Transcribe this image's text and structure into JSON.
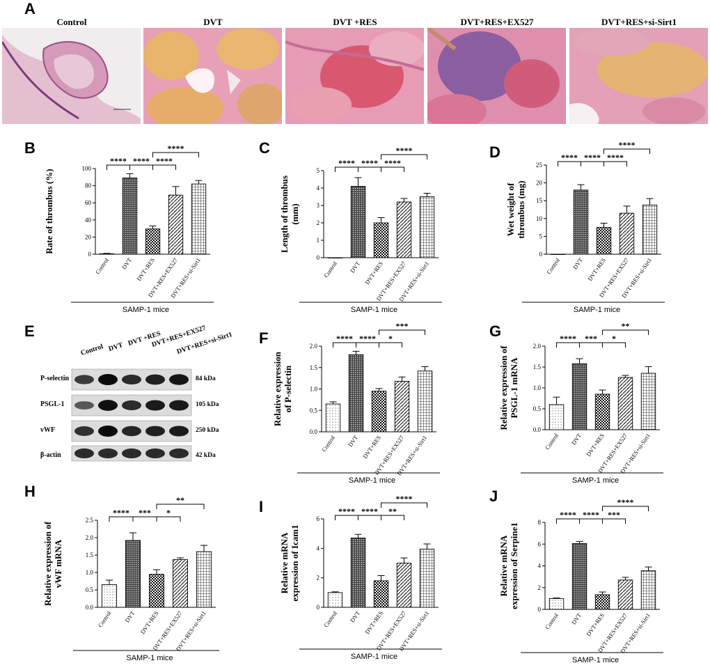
{
  "panel_letters": [
    "A",
    "B",
    "C",
    "D",
    "E",
    "F",
    "G",
    "H",
    "I",
    "J"
  ],
  "histology": {
    "panels": [
      {
        "title": "Control"
      },
      {
        "title": "DVT"
      },
      {
        "title": "DVT +RES"
      },
      {
        "title": "DVT+RES+EX527"
      },
      {
        "title": "DVT+RES+si-Sirt1"
      }
    ]
  },
  "western_blot": {
    "lanes": [
      "Control",
      "DVT",
      "DVT +RES",
      "DVT+RES+EX527",
      "DVT+RES+si-Sirt1"
    ],
    "rows": [
      {
        "label": "P-selectin",
        "kda": "84 kDa",
        "intensity": [
          0.55,
          1.0,
          0.7,
          0.8,
          0.9
        ]
      },
      {
        "label": "PSGL-1",
        "kda": "105 kDa",
        "intensity": [
          0.3,
          0.95,
          0.7,
          0.85,
          0.85
        ]
      },
      {
        "label": "vWF",
        "kda": "250 kDa",
        "intensity": [
          0.65,
          1.0,
          0.75,
          0.8,
          0.85
        ]
      },
      {
        "label": "β-actin",
        "kda": "42 kDa",
        "intensity": [
          0.7,
          0.7,
          0.7,
          0.7,
          0.7
        ]
      }
    ]
  },
  "chart_data": [
    {
      "id": "B",
      "type": "bar",
      "categories": [
        "Control",
        "DVT",
        "DVT+RES",
        "DVT+RES+EX527",
        "DVT+RES+si-Sirt1"
      ],
      "values": [
        0.5,
        89,
        29.5,
        69,
        82
      ],
      "errors": [
        0.5,
        5,
        3.5,
        10,
        4
      ],
      "ylabel": "Rate of thrombus (%)",
      "ylim": [
        0,
        100
      ],
      "yticks": [
        "0",
        "20",
        "40",
        "60",
        "80",
        "100"
      ],
      "ytick_values": [
        0,
        20,
        40,
        60,
        80,
        100
      ],
      "group_label": "SAMP-1  mice",
      "significance": [
        {
          "from": 0,
          "to": 1,
          "label": "****",
          "level": 0
        },
        {
          "from": 1,
          "to": 2,
          "label": "****",
          "level": 0
        },
        {
          "from": 2,
          "to": 3,
          "label": "****",
          "level": 0
        },
        {
          "from": 2,
          "to": 4,
          "label": "****",
          "level": 1
        }
      ]
    },
    {
      "id": "C",
      "type": "bar",
      "categories": [
        "Control",
        "DVT",
        "DVT+RES",
        "DVT+RES+EX527",
        "DVT+RES+si-Sirt1"
      ],
      "values": [
        0,
        4.1,
        2.0,
        3.2,
        3.5
      ],
      "errors": [
        0,
        0.5,
        0.3,
        0.2,
        0.2
      ],
      "ylabel": "Length of thrombus\n(mm)",
      "ylim": [
        0,
        5
      ],
      "yticks": [
        "0",
        "1",
        "2",
        "3",
        "4",
        "5"
      ],
      "ytick_values": [
        0,
        1,
        2,
        3,
        4,
        5
      ],
      "group_label": "SAMP-1  mice",
      "significance": [
        {
          "from": 0,
          "to": 1,
          "label": "****",
          "level": 0
        },
        {
          "from": 1,
          "to": 2,
          "label": "****",
          "level": 0
        },
        {
          "from": 2,
          "to": 3,
          "label": "****",
          "level": 0
        },
        {
          "from": 2,
          "to": 4,
          "label": "****",
          "level": 1
        }
      ]
    },
    {
      "id": "D",
      "type": "bar",
      "categories": [
        "Control",
        "DVT",
        "DVT+RES",
        "DVT+RES+EX527",
        "DVT+RES+si-Sirt1"
      ],
      "values": [
        0,
        18,
        7.5,
        11.5,
        13.8
      ],
      "errors": [
        0,
        1.5,
        1.2,
        2,
        1.8
      ],
      "ylabel": "Wet weight of\nthrombus (mg)",
      "ylim": [
        0,
        25
      ],
      "yticks": [
        "0",
        "5",
        "10",
        "15",
        "20",
        "25"
      ],
      "ytick_values": [
        0,
        5,
        10,
        15,
        20,
        25
      ],
      "group_label": "SAMP-1  mice",
      "significance": [
        {
          "from": 0,
          "to": 1,
          "label": "****",
          "level": 0
        },
        {
          "from": 1,
          "to": 2,
          "label": "****",
          "level": 0
        },
        {
          "from": 2,
          "to": 3,
          "label": "****",
          "level": 0
        },
        {
          "from": 2,
          "to": 4,
          "label": "****",
          "level": 1
        }
      ]
    },
    {
      "id": "F",
      "type": "bar",
      "categories": [
        "Control",
        "DVT",
        "DVT+RES",
        "DVT+RES+EX527",
        "DVT+RES+si-Sirt1"
      ],
      "values": [
        0.65,
        1.8,
        0.95,
        1.18,
        1.42
      ],
      "errors": [
        0.05,
        0.08,
        0.06,
        0.1,
        0.1
      ],
      "ylabel": "Relative  expression\nof P-selectin",
      "ylim": [
        0,
        2.0
      ],
      "yticks": [
        "0.0",
        "0.5",
        "1.0",
        "1.5",
        "2.0"
      ],
      "ytick_values": [
        0,
        0.5,
        1.0,
        1.5,
        2.0
      ],
      "group_label": "SAMP-1  mice",
      "significance": [
        {
          "from": 0,
          "to": 1,
          "label": "****",
          "level": 0
        },
        {
          "from": 1,
          "to": 2,
          "label": "****",
          "level": 0
        },
        {
          "from": 2,
          "to": 3,
          "label": "*",
          "level": 0
        },
        {
          "from": 2,
          "to": 4,
          "label": "***",
          "level": 1
        }
      ]
    },
    {
      "id": "G",
      "type": "bar",
      "categories": [
        "Control",
        "DVT",
        "DVT+RES",
        "DVT+RES+EX527",
        "DVT+RES+si-Sirt1"
      ],
      "values": [
        0.6,
        1.58,
        0.85,
        1.25,
        1.35
      ],
      "errors": [
        0.18,
        0.12,
        0.1,
        0.05,
        0.16
      ],
      "ylabel": "Relative  expression of\nPSGL-1 mRNA",
      "ylim": [
        0,
        2.0
      ],
      "yticks": [
        "0.0",
        "0.5",
        "1.0",
        "1.5",
        "2.0"
      ],
      "ytick_values": [
        0,
        0.5,
        1.0,
        1.5,
        2.0
      ],
      "group_label": "SAMP-1  mice",
      "significance": [
        {
          "from": 0,
          "to": 1,
          "label": "****",
          "level": 0
        },
        {
          "from": 1,
          "to": 2,
          "label": "***",
          "level": 0
        },
        {
          "from": 2,
          "to": 3,
          "label": "*",
          "level": 0
        },
        {
          "from": 2,
          "to": 4,
          "label": "**",
          "level": 1
        }
      ]
    },
    {
      "id": "H",
      "type": "bar",
      "categories": [
        "Control",
        "DVT",
        "DVT+RES",
        "DVT+RES+EX527",
        "DVT+RES+si-Sirt1"
      ],
      "values": [
        0.65,
        1.92,
        0.95,
        1.37,
        1.6
      ],
      "errors": [
        0.13,
        0.22,
        0.13,
        0.05,
        0.18
      ],
      "ylabel": "Relative  expression of\nvWF mRNA",
      "ylim": [
        0,
        2.5
      ],
      "yticks": [
        "0.0",
        "0.5",
        "1.0",
        "1.5",
        "2.0",
        "2.5"
      ],
      "ytick_values": [
        0,
        0.5,
        1.0,
        1.5,
        2.0,
        2.5
      ],
      "group_label": "SAMP-1  mice",
      "significance": [
        {
          "from": 0,
          "to": 1,
          "label": "****",
          "level": 0
        },
        {
          "from": 1,
          "to": 2,
          "label": "***",
          "level": 0
        },
        {
          "from": 2,
          "to": 3,
          "label": "*",
          "level": 0
        },
        {
          "from": 2,
          "to": 4,
          "label": "**",
          "level": 1
        }
      ]
    },
    {
      "id": "I",
      "type": "bar",
      "categories": [
        "Control",
        "DVT",
        "DVT+RES",
        "DVT+RES+EX527",
        "DVT+RES+si-Sirt1"
      ],
      "values": [
        1.0,
        4.7,
        1.8,
        3.0,
        3.95
      ],
      "errors": [
        0.05,
        0.25,
        0.35,
        0.35,
        0.35
      ],
      "ylabel": "Relative mRNA\nexpression of Icam1",
      "ylim": [
        0,
        6
      ],
      "yticks": [
        "0",
        "2",
        "4",
        "6"
      ],
      "ytick_values": [
        0,
        2,
        4,
        6
      ],
      "group_label": "SAMP-1  mice",
      "significance": [
        {
          "from": 0,
          "to": 1,
          "label": "****",
          "level": 0
        },
        {
          "from": 1,
          "to": 2,
          "label": "****",
          "level": 0
        },
        {
          "from": 2,
          "to": 3,
          "label": "**",
          "level": 0
        },
        {
          "from": 2,
          "to": 4,
          "label": "****",
          "level": 1
        }
      ]
    },
    {
      "id": "J",
      "type": "bar",
      "categories": [
        "Control",
        "DVT",
        "DVT+RES",
        "DVT+RES+EX527",
        "DVT+RES+si-Sirt1"
      ],
      "values": [
        1.0,
        6.05,
        1.35,
        2.7,
        3.55
      ],
      "errors": [
        0.05,
        0.2,
        0.25,
        0.25,
        0.35
      ],
      "ylabel": "Relative mRNA\nexpression of Serpine1",
      "ylim": [
        0,
        8
      ],
      "yticks": [
        "0",
        "2",
        "4",
        "6",
        "8"
      ],
      "ytick_values": [
        0,
        2,
        4,
        6,
        8
      ],
      "group_label": "SAMP-1  mice",
      "significance": [
        {
          "from": 0,
          "to": 1,
          "label": "****",
          "level": 0
        },
        {
          "from": 1,
          "to": 2,
          "label": "****",
          "level": 0
        },
        {
          "from": 2,
          "to": 3,
          "label": "***",
          "level": 0
        },
        {
          "from": 2,
          "to": 4,
          "label": "****",
          "level": 1
        }
      ]
    }
  ]
}
